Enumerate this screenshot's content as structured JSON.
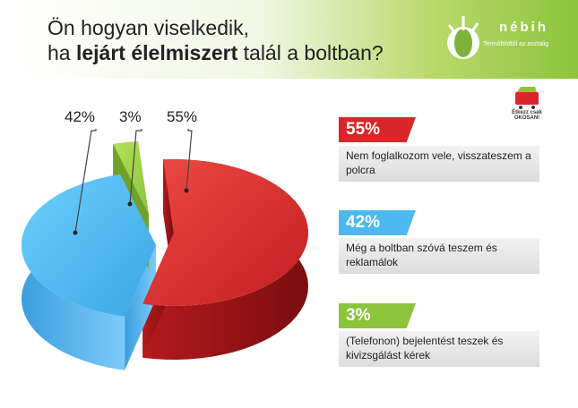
{
  "header": {
    "title_line1": "Ön hogyan viselkedik,",
    "title_line2_pre": "ha ",
    "title_line2_bold": "lejárt élelmiszert",
    "title_line2_post": " talál a boltban?"
  },
  "logo": {
    "name": "nébih",
    "subtitle": "Termőföldtől az asztalig"
  },
  "badge": {
    "text": "Étkezz csak OKOSAN!"
  },
  "colors": {
    "red": "#d8262a",
    "blue": "#4cb8ee",
    "green": "#8cc43c"
  },
  "chart_data": {
    "type": "pie",
    "style": "3d-exploded",
    "slices": [
      {
        "label": "55%",
        "value": 55,
        "color": "#d8262a",
        "description": "Nem foglalkozom vele, visszateszem a polcra"
      },
      {
        "label": "42%",
        "value": 42,
        "color": "#4cb8ee",
        "description": "Még a boltban szóvá teszem és reklamálok"
      },
      {
        "label": "3%",
        "value": 3,
        "color": "#8cc43c",
        "description": "(Telefonon) bejelentést teszek és kivizsgálást kérek"
      }
    ]
  }
}
